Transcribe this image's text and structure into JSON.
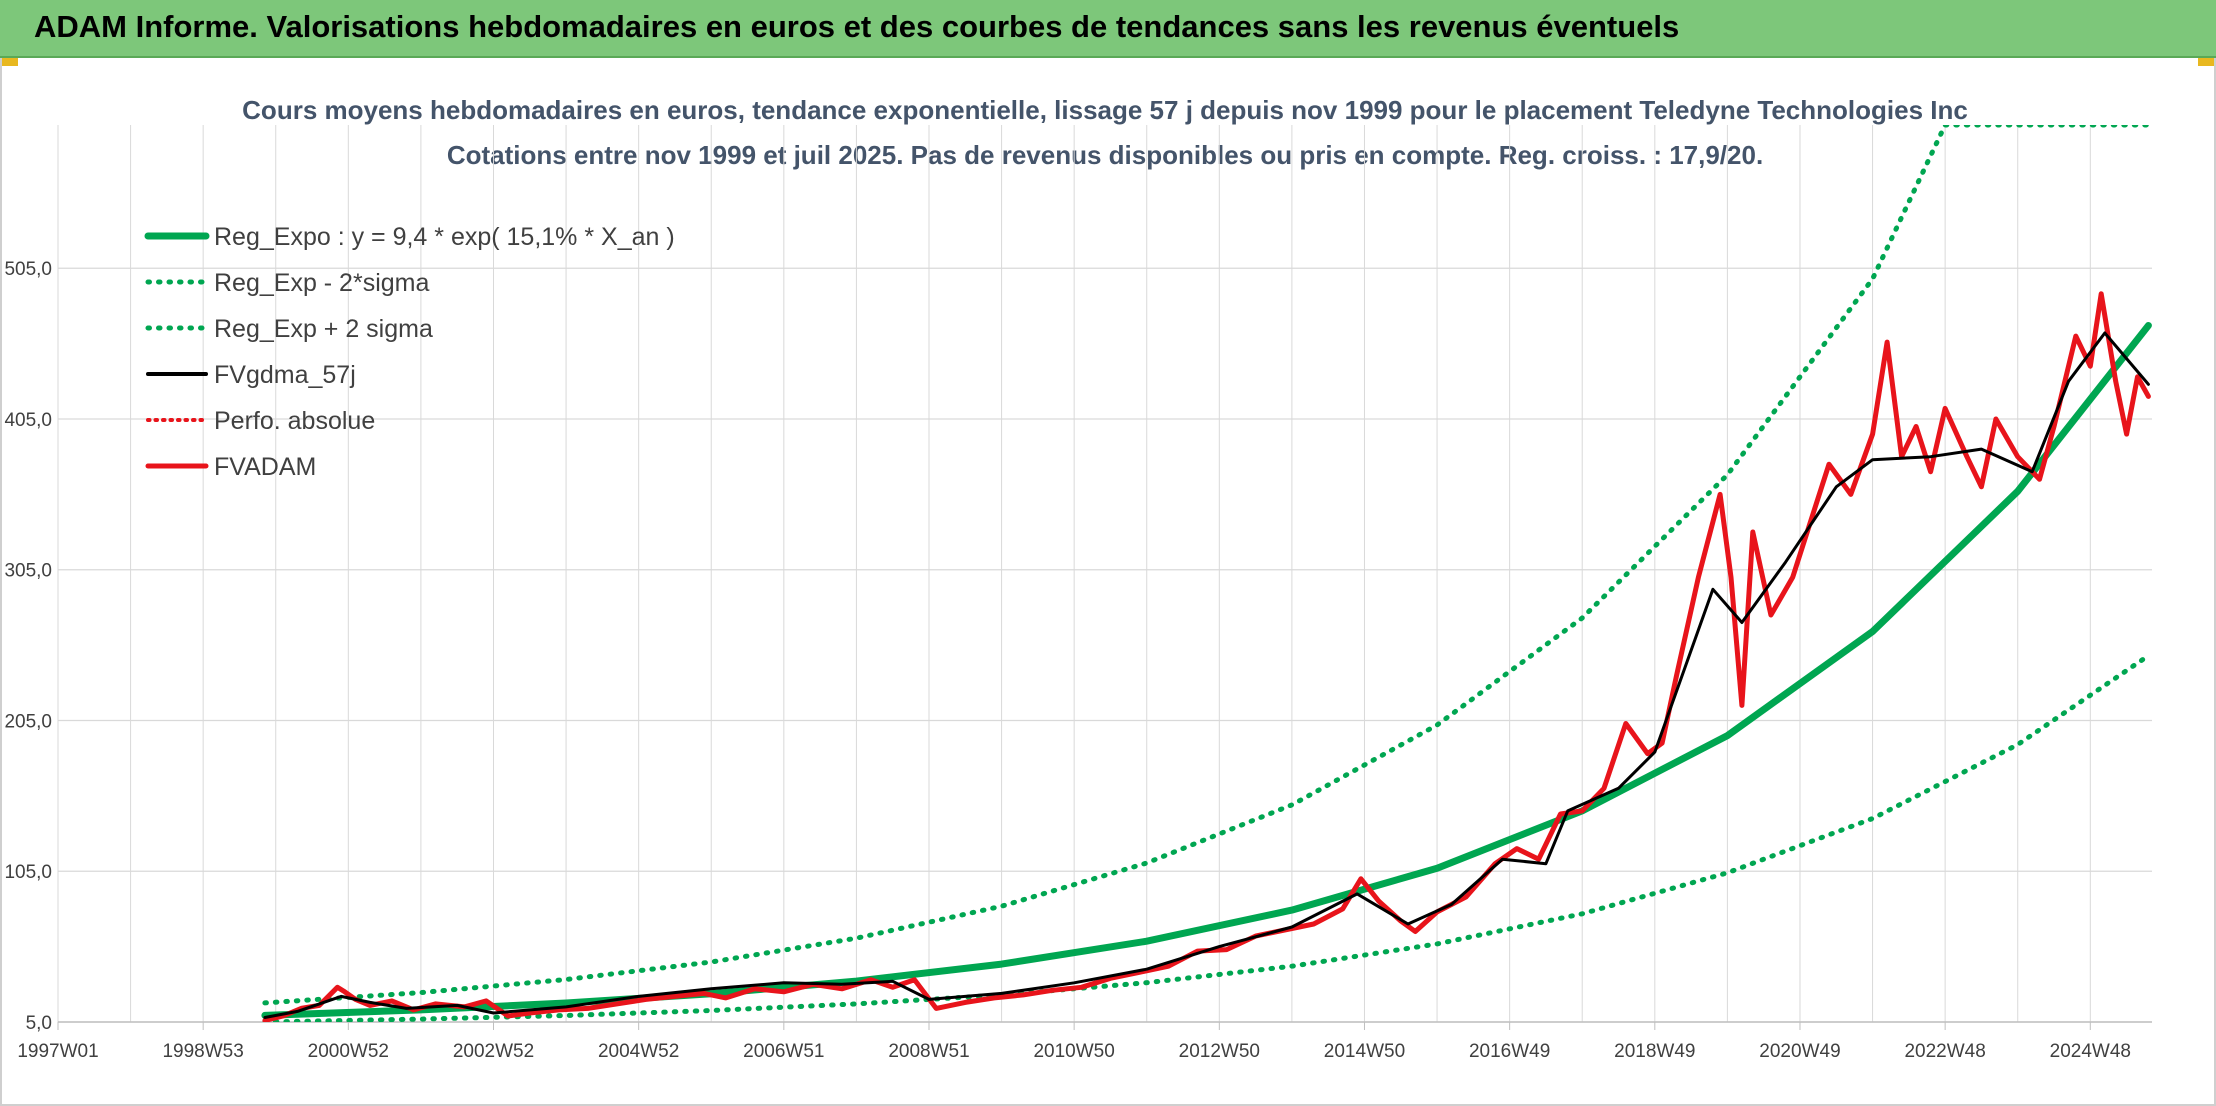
{
  "header": {
    "title": "ADAM Informe. Valorisations hebdomadaires en euros et des courbes de tendances sans les revenus éventuels"
  },
  "chart_data": {
    "type": "line",
    "title": "Cours moyens hebdomadaires en euros, tendance exponentielle, lissage 57 j depuis nov 1999 pour le placement Teledyne Technologies Inc",
    "subtitle": "Cotations entre nov 1999 et juil 2025. Pas de revenus disponibles ou pris en compte. Reg. croiss. : 17,9/20.",
    "xlabel": "",
    "ylabel": "",
    "x_ticks": [
      "1997W01",
      "1998W53",
      "2000W52",
      "2002W52",
      "2004W52",
      "2006W51",
      "2008W51",
      "2010W50",
      "2012W50",
      "2014W50",
      "2016W49",
      "2018W49",
      "2020W49",
      "2022W48",
      "2024W48"
    ],
    "xlim": [
      1997.0,
      2025.85
    ],
    "y_ticks": [
      "5,0",
      "105,0",
      "205,0",
      "305,0",
      "405,0",
      "505,0"
    ],
    "y_tick_values": [
      5,
      105,
      205,
      305,
      405,
      505
    ],
    "ylim": [
      5,
      600
    ],
    "grid": true,
    "legend_position": "top-left",
    "colors": {
      "reg": "#00a651",
      "fvg": "#000000",
      "perfo": "#e8141b",
      "fvadam": "#e8141b",
      "grid": "#d9d9d9",
      "axis": "#bfbfbf"
    },
    "series": [
      {
        "name": "Reg_Expo : y = 9,4 * exp( 15,1% *  X_an )",
        "key": "reg",
        "style": "solid",
        "color": "#00a651",
        "points": [
          [
            1999.85,
            9.4
          ],
          [
            2002,
            13.0
          ],
          [
            2004,
            17.6
          ],
          [
            2006,
            23.8
          ],
          [
            2008,
            32.1
          ],
          [
            2010,
            43.4
          ],
          [
            2012,
            58.6
          ],
          [
            2014,
            79.2
          ],
          [
            2016,
            107
          ],
          [
            2018,
            145
          ],
          [
            2020,
            195
          ],
          [
            2022,
            264
          ],
          [
            2024,
            357
          ],
          [
            2025.8,
            467
          ]
        ]
      },
      {
        "name": "Reg_Exp - 2*sigma",
        "key": "reglow",
        "style": "dotted",
        "color": "#00a651",
        "points": [
          [
            1999.85,
            5.0
          ],
          [
            2002,
            6.9
          ],
          [
            2004,
            9.3
          ],
          [
            2006,
            12.6
          ],
          [
            2008,
            17.0
          ],
          [
            2010,
            23.0
          ],
          [
            2012,
            31.1
          ],
          [
            2014,
            42.0
          ],
          [
            2016,
            56.8
          ],
          [
            2018,
            76.8
          ],
          [
            2020,
            104
          ],
          [
            2022,
            140
          ],
          [
            2024,
            189
          ],
          [
            2025.8,
            248
          ]
        ]
      },
      {
        "name": "Reg_Exp + 2 sigma",
        "key": "reghigh",
        "style": "dotted",
        "color": "#00a651",
        "points": [
          [
            1999.85,
            17.7
          ],
          [
            2002,
            24.5
          ],
          [
            2004,
            33.2
          ],
          [
            2006,
            44.8
          ],
          [
            2008,
            60.6
          ],
          [
            2010,
            81.8
          ],
          [
            2012,
            110.5
          ],
          [
            2014,
            149
          ],
          [
            2016,
            202
          ],
          [
            2018,
            273
          ],
          [
            2020,
            368
          ],
          [
            2022,
            498
          ],
          [
            2023.0,
            600
          ],
          [
            2025.8,
            600
          ]
        ]
      },
      {
        "name": "FVgdma_57j",
        "key": "fvg",
        "style": "solid",
        "color": "#000000",
        "points": [
          [
            1999.85,
            8
          ],
          [
            2000.3,
            12
          ],
          [
            2000.9,
            22
          ],
          [
            2001.3,
            18
          ],
          [
            2001.8,
            14
          ],
          [
            2002.5,
            16
          ],
          [
            2003,
            11
          ],
          [
            2004,
            15
          ],
          [
            2005,
            22
          ],
          [
            2006,
            27
          ],
          [
            2007,
            31
          ],
          [
            2007.8,
            30
          ],
          [
            2008.5,
            32
          ],
          [
            2009,
            20
          ],
          [
            2010,
            24
          ],
          [
            2011,
            31
          ],
          [
            2012,
            40
          ],
          [
            2013,
            55
          ],
          [
            2014,
            68
          ],
          [
            2014.9,
            90
          ],
          [
            2015.6,
            70
          ],
          [
            2016.2,
            83
          ],
          [
            2016.9,
            113
          ],
          [
            2017.5,
            110
          ],
          [
            2017.8,
            145
          ],
          [
            2018.5,
            160
          ],
          [
            2019,
            184
          ],
          [
            2019.8,
            292
          ],
          [
            2020.2,
            270
          ],
          [
            2020.8,
            310
          ],
          [
            2021.5,
            360
          ],
          [
            2022,
            378
          ],
          [
            2022.8,
            380
          ],
          [
            2023.5,
            385
          ],
          [
            2024.2,
            370
          ],
          [
            2024.7,
            430
          ],
          [
            2025.2,
            462
          ],
          [
            2025.8,
            428
          ]
        ]
      },
      {
        "name": "Perfo. absolue",
        "key": "perfo",
        "style": "dotted",
        "color": "#e8141b",
        "points": []
      },
      {
        "name": "FVADAM",
        "key": "fvadam",
        "style": "solid",
        "color": "#e8141b",
        "points": [
          [
            1999.85,
            6
          ],
          [
            2000.1,
            9
          ],
          [
            2000.35,
            14
          ],
          [
            2000.6,
            16
          ],
          [
            2000.85,
            28
          ],
          [
            2000.95,
            25
          ],
          [
            2001.1,
            20
          ],
          [
            2001.3,
            16
          ],
          [
            2001.6,
            19
          ],
          [
            2001.9,
            13
          ],
          [
            2002.2,
            17
          ],
          [
            2002.6,
            15
          ],
          [
            2002.9,
            19
          ],
          [
            2003.2,
            9
          ],
          [
            2003.5,
            11
          ],
          [
            2003.9,
            13
          ],
          [
            2004.3,
            14
          ],
          [
            2004.7,
            17
          ],
          [
            2005.1,
            20
          ],
          [
            2005.5,
            22
          ],
          [
            2005.9,
            24
          ],
          [
            2006.2,
            21
          ],
          [
            2006.6,
            27
          ],
          [
            2007.0,
            25
          ],
          [
            2007.4,
            30
          ],
          [
            2007.8,
            27
          ],
          [
            2008.2,
            33
          ],
          [
            2008.5,
            28
          ],
          [
            2008.8,
            33
          ],
          [
            2009.1,
            14
          ],
          [
            2009.5,
            18
          ],
          [
            2009.9,
            21
          ],
          [
            2010.3,
            23
          ],
          [
            2010.7,
            26
          ],
          [
            2011.1,
            28
          ],
          [
            2011.5,
            34
          ],
          [
            2011.9,
            38
          ],
          [
            2012.3,
            42
          ],
          [
            2012.7,
            52
          ],
          [
            2013.1,
            53
          ],
          [
            2013.5,
            62
          ],
          [
            2013.9,
            66
          ],
          [
            2014.3,
            70
          ],
          [
            2014.7,
            80
          ],
          [
            2014.95,
            100
          ],
          [
            2015.2,
            85
          ],
          [
            2015.5,
            72
          ],
          [
            2015.7,
            65
          ],
          [
            2016.0,
            78
          ],
          [
            2016.4,
            88
          ],
          [
            2016.8,
            110
          ],
          [
            2017.1,
            120
          ],
          [
            2017.4,
            113
          ],
          [
            2017.7,
            143
          ],
          [
            2018.0,
            145
          ],
          [
            2018.3,
            160
          ],
          [
            2018.6,
            203
          ],
          [
            2018.9,
            183
          ],
          [
            2019.1,
            190
          ],
          [
            2019.3,
            235
          ],
          [
            2019.6,
            300
          ],
          [
            2019.9,
            355
          ],
          [
            2020.05,
            300
          ],
          [
            2020.2,
            215
          ],
          [
            2020.35,
            330
          ],
          [
            2020.6,
            275
          ],
          [
            2020.9,
            300
          ],
          [
            2021.1,
            330
          ],
          [
            2021.4,
            375
          ],
          [
            2021.7,
            355
          ],
          [
            2022.0,
            395
          ],
          [
            2022.2,
            456
          ],
          [
            2022.4,
            380
          ],
          [
            2022.6,
            400
          ],
          [
            2022.8,
            370
          ],
          [
            2023.0,
            412
          ],
          [
            2023.3,
            380
          ],
          [
            2023.5,
            360
          ],
          [
            2023.7,
            405
          ],
          [
            2024.0,
            380
          ],
          [
            2024.3,
            365
          ],
          [
            2024.5,
            400
          ],
          [
            2024.8,
            460
          ],
          [
            2025.0,
            440
          ],
          [
            2025.15,
            488
          ],
          [
            2025.35,
            430
          ],
          [
            2025.5,
            395
          ],
          [
            2025.65,
            433
          ],
          [
            2025.8,
            420
          ]
        ]
      }
    ]
  }
}
